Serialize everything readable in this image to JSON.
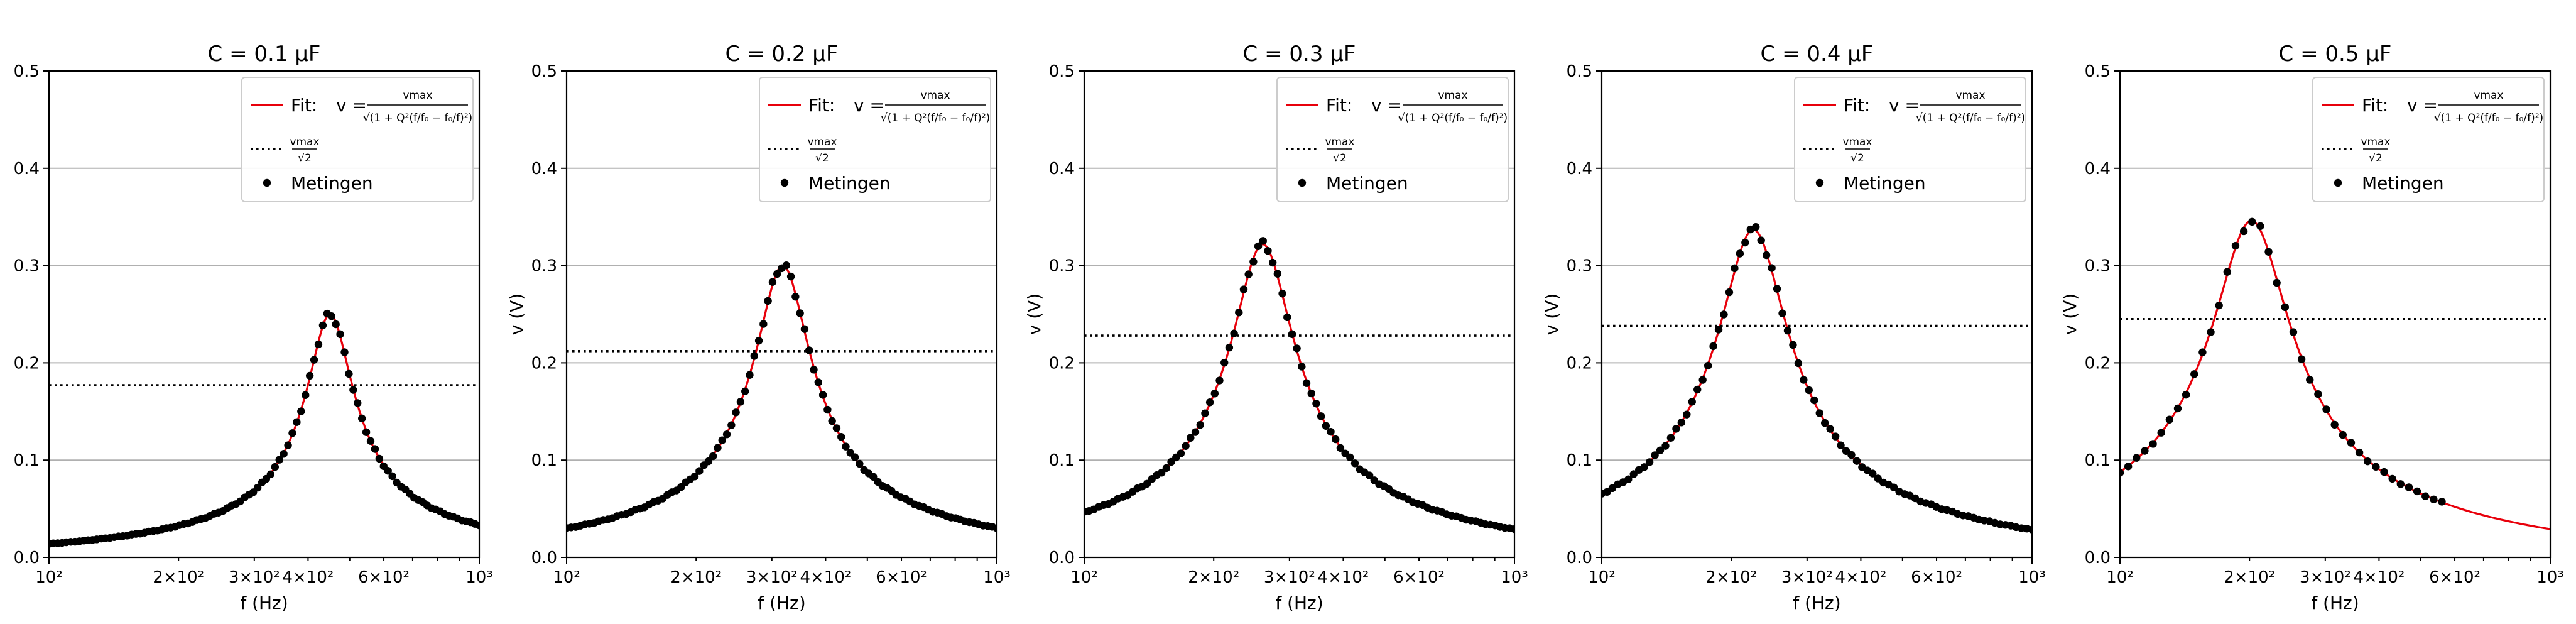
{
  "figure": {
    "legend_fit_label": "Fit: ",
    "legend_measure_label": "Metingen"
  },
  "chart_data": [
    {
      "type": "scatter",
      "title": "C = 0.1 μF",
      "xlabel": "f (Hz)",
      "ylabel": "",
      "xscale": "log",
      "xlim": [
        100,
        1000
      ],
      "ylim": [
        0,
        0.5
      ],
      "yticks": [
        "0.0",
        "0.1",
        "0.2",
        "0.3",
        "0.4",
        "0.5"
      ],
      "xticks": [
        "10²",
        "2×10²",
        "3×10²",
        "4×10²",
        "6×10²",
        "10³"
      ],
      "grid": "horizontal",
      "legend": "top-right",
      "fit": {
        "f0": 450,
        "vmax": 0.25,
        "Q": 4.2
      },
      "half_line": 0.177,
      "measurements": {
        "f_start": 100,
        "f_end": 1000,
        "count": 100,
        "spacing": "log"
      }
    },
    {
      "type": "scatter",
      "title": "C = 0.2 μF",
      "xlabel": "f (Hz)",
      "ylabel": "v (V)",
      "xscale": "log",
      "xlim": [
        100,
        1000
      ],
      "ylim": [
        0,
        0.5
      ],
      "yticks": [
        "0.0",
        "0.1",
        "0.2",
        "0.3",
        "0.4",
        "0.5"
      ],
      "xticks": [
        "10²",
        "2×10²",
        "3×10²",
        "4×10²",
        "6×10²",
        "10³"
      ],
      "grid": "horizontal",
      "legend": "top-right",
      "fit": {
        "f0": 318,
        "vmax": 0.3,
        "Q": 3.5
      },
      "half_line": 0.212,
      "measurements": {
        "f_start": 100,
        "f_end": 1000,
        "count": 95,
        "spacing": "log"
      }
    },
    {
      "type": "scatter",
      "title": "C = 0.3 μF",
      "xlabel": "f (Hz)",
      "ylabel": "v (V)",
      "xscale": "log",
      "xlim": [
        100,
        1000
      ],
      "ylim": [
        0,
        0.5
      ],
      "yticks": [
        "0.0",
        "0.1",
        "0.2",
        "0.3",
        "0.4",
        "0.5"
      ],
      "xticks": [
        "10²",
        "2×10²",
        "3×10²",
        "4×10²",
        "6×10²",
        "10³"
      ],
      "grid": "horizontal",
      "legend": "top-right",
      "fit": {
        "f0": 260,
        "vmax": 0.322,
        "Q": 3.1
      },
      "half_line": 0.228,
      "measurements": {
        "f_start": 100,
        "f_end": 1000,
        "count": 90,
        "spacing": "log"
      }
    },
    {
      "type": "scatter",
      "title": "C = 0.4 μF",
      "xlabel": "f (Hz)",
      "ylabel": "v (V)",
      "xscale": "log",
      "xlim": [
        100,
        1000
      ],
      "ylim": [
        0,
        0.5
      ],
      "yticks": [
        "0.0",
        "0.1",
        "0.2",
        "0.3",
        "0.4",
        "0.5"
      ],
      "xticks": [
        "10²",
        "2×10²",
        "3×10²",
        "4×10²",
        "6×10²",
        "10³"
      ],
      "grid": "horizontal",
      "legend": "top-right",
      "fit": {
        "f0": 225,
        "vmax": 0.337,
        "Q": 2.8
      },
      "half_line": 0.238,
      "measurements": {
        "f_start": 100,
        "f_end": 1000,
        "count": 82,
        "spacing": "log"
      }
    },
    {
      "type": "scatter",
      "title": "C = 0.5 μF",
      "xlabel": "f (Hz)",
      "ylabel": "v (V)",
      "xscale": "log",
      "xlim": [
        100,
        1000
      ],
      "ylim": [
        0,
        0.5
      ],
      "yticks": [
        "0.0",
        "0.1",
        "0.2",
        "0.3",
        "0.4",
        "0.5"
      ],
      "xticks": [
        "10²",
        "2×10²",
        "3×10²",
        "4×10²",
        "6×10²",
        "10³"
      ],
      "grid": "horizontal",
      "legend": "top-right",
      "fit": {
        "f0": 202,
        "vmax": 0.346,
        "Q": 2.5
      },
      "half_line": 0.245,
      "measurements": {
        "f_start": 100,
        "f_end": 560,
        "count": 40,
        "spacing": "log"
      }
    }
  ]
}
